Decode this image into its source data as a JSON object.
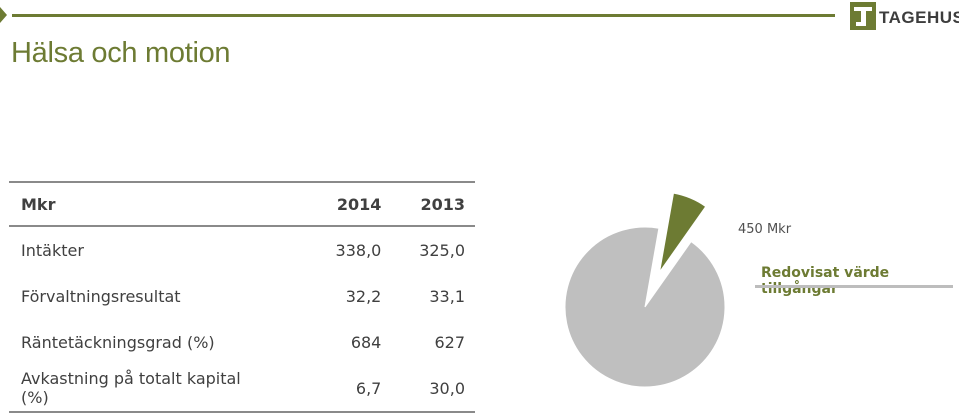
{
  "header": {
    "brand": "TAGEHUS",
    "title": "Hälsa och motion",
    "accent_color": "#6d7b33",
    "logo_icon": "tagehus-logo-icon"
  },
  "table": {
    "headers": [
      "Mkr",
      "2014",
      "2013"
    ],
    "rows": [
      [
        "Intäkter",
        "338,0",
        "325,0"
      ],
      [
        "Förvaltningsresultat",
        "32,2",
        "33,1"
      ],
      [
        "Räntetäckningsgrad (%)",
        "684",
        "627"
      ],
      [
        "Avkastning på totalt kapital (%)",
        "6,7",
        "30,0"
      ]
    ]
  },
  "chart_data": {
    "type": "pie",
    "value_label": "450 Mkr",
    "legend_label": "Redovisat värde tillgångar",
    "slices": [
      {
        "share": 0.07,
        "color": "#6d7b33",
        "exploded": true
      },
      {
        "share": 0.93,
        "color": "#bfbfbf",
        "exploded": false
      }
    ]
  }
}
